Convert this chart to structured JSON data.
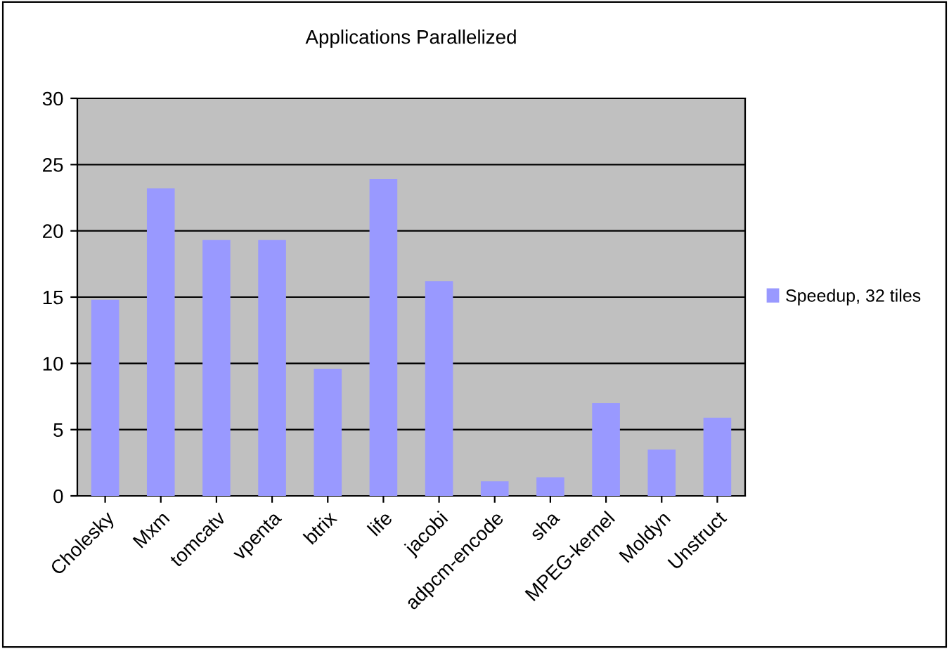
{
  "chart_data": {
    "type": "bar",
    "title": "Applications Parallelized",
    "categories": [
      "Cholesky",
      "Mxm",
      "tomcatv",
      "vpenta",
      "btrix",
      "life",
      "jacobi",
      "adpcm-encode",
      "sha",
      "MPEG-kernel",
      "Moldyn",
      "Unstruct"
    ],
    "series": [
      {
        "name": "Speedup, 32 tiles",
        "color": "#9999ff",
        "values": [
          14.8,
          23.2,
          19.3,
          19.3,
          9.6,
          23.9,
          16.2,
          1.1,
          1.4,
          7.0,
          3.5,
          5.9
        ]
      }
    ],
    "ylim": [
      0,
      30
    ],
    "yticks": [
      0,
      5,
      10,
      15,
      20,
      25,
      30
    ],
    "grid": "y",
    "legend": "right"
  }
}
